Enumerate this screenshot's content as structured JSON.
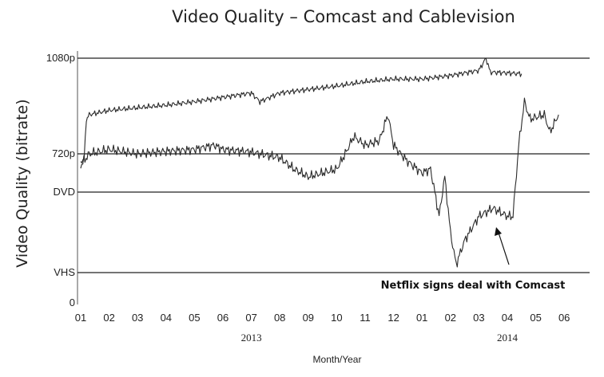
{
  "chart_data": {
    "type": "line",
    "title": "Video Quality – Comcast and Cablevision",
    "xlabel": "Month/Year",
    "ylabel": "Video Quality (bitrate)",
    "x_tick_labels": [
      "01",
      "02",
      "03",
      "04",
      "05",
      "06",
      "07",
      "08",
      "09",
      "10",
      "11",
      "12",
      "01",
      "02",
      "03",
      "04",
      "05",
      "06"
    ],
    "year_labels": [
      {
        "label": "2013",
        "month_index": 6
      },
      {
        "label": "2014",
        "month_index": 15
      }
    ],
    "y_ticks": [
      {
        "label": "0",
        "value": 0
      },
      {
        "label": "VHS",
        "value": 1
      },
      {
        "label": "DVD",
        "value": 2
      },
      {
        "label": "720p",
        "value": 2.5
      },
      {
        "label": "1080p",
        "value": 3.6
      }
    ],
    "ylim": [
      0,
      3.6
    ],
    "gridlines": [
      "VHS",
      "DVD",
      "720p",
      "1080p"
    ],
    "series": [
      {
        "name": "Cablevision",
        "points": [
          [
            0,
            2.4
          ],
          [
            0.12,
            2.43
          ],
          [
            0.2,
            2.9
          ],
          [
            0.3,
            2.95
          ],
          [
            1,
            3.0
          ],
          [
            2,
            3.03
          ],
          [
            3,
            3.06
          ],
          [
            4,
            3.1
          ],
          [
            5,
            3.15
          ],
          [
            6,
            3.2
          ],
          [
            6.3,
            3.1
          ],
          [
            7,
            3.2
          ],
          [
            8,
            3.24
          ],
          [
            9,
            3.28
          ],
          [
            10,
            3.33
          ],
          [
            11,
            3.36
          ],
          [
            12,
            3.36
          ],
          [
            13,
            3.4
          ],
          [
            14,
            3.46
          ],
          [
            14.25,
            3.6
          ],
          [
            14.4,
            3.44
          ],
          [
            15,
            3.43
          ],
          [
            15.5,
            3.42
          ]
        ]
      },
      {
        "name": "Comcast",
        "points": [
          [
            0,
            2.35
          ],
          [
            0.3,
            2.5
          ],
          [
            1,
            2.55
          ],
          [
            2,
            2.5
          ],
          [
            3,
            2.53
          ],
          [
            4,
            2.55
          ],
          [
            4.7,
            2.6
          ],
          [
            5,
            2.55
          ],
          [
            6,
            2.52
          ],
          [
            7,
            2.45
          ],
          [
            7.5,
            2.3
          ],
          [
            8,
            2.2
          ],
          [
            8.5,
            2.25
          ],
          [
            9,
            2.3
          ],
          [
            9.3,
            2.5
          ],
          [
            9.6,
            2.7
          ],
          [
            10,
            2.6
          ],
          [
            10.5,
            2.65
          ],
          [
            10.8,
            2.95
          ],
          [
            11,
            2.6
          ],
          [
            11.5,
            2.4
          ],
          [
            12,
            2.25
          ],
          [
            12.3,
            2.3
          ],
          [
            12.6,
            1.7
          ],
          [
            12.8,
            2.2
          ],
          [
            13.0,
            1.5
          ],
          [
            13.2,
            1.1
          ],
          [
            13.5,
            1.4
          ],
          [
            14,
            1.7
          ],
          [
            14.5,
            1.8
          ],
          [
            15,
            1.7
          ],
          [
            15.2,
            1.7
          ],
          [
            15.4,
            2.6
          ],
          [
            15.6,
            3.1
          ],
          [
            15.8,
            2.9
          ],
          [
            16.3,
            2.95
          ],
          [
            16.5,
            2.75
          ],
          [
            16.8,
            2.95
          ]
        ]
      }
    ],
    "annotation": {
      "text": "Netflix signs deal with Comcast",
      "points_to_x": 15.1,
      "points_to_y": 1.6
    }
  }
}
